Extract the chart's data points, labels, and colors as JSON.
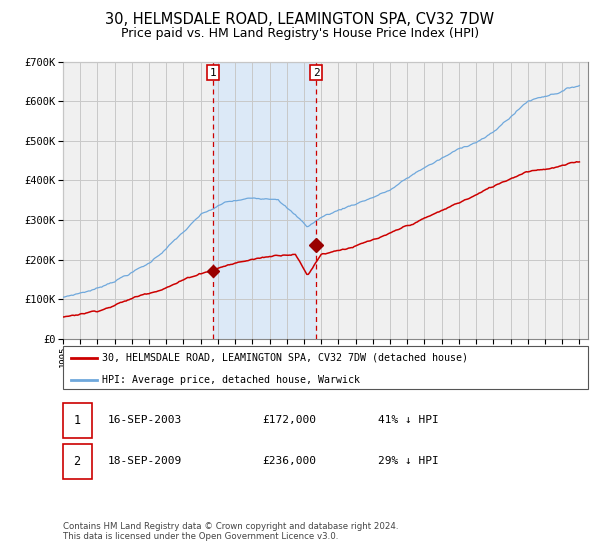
{
  "title": "30, HELMSDALE ROAD, LEAMINGTON SPA, CV32 7DW",
  "subtitle": "Price paid vs. HM Land Registry's House Price Index (HPI)",
  "legend_entry1": "30, HELMSDALE ROAD, LEAMINGTON SPA, CV32 7DW (detached house)",
  "legend_entry2": "HPI: Average price, detached house, Warwick",
  "sale1_date": "16-SEP-2003",
  "sale1_price": 172000,
  "sale1_pct": "41% ↓ HPI",
  "sale2_date": "18-SEP-2009",
  "sale2_price": 236000,
  "sale2_pct": "29% ↓ HPI",
  "footer": "Contains HM Land Registry data © Crown copyright and database right 2024.\nThis data is licensed under the Open Government Licence v3.0.",
  "hpi_color": "#6fa8dc",
  "price_color": "#cc0000",
  "sale_marker_color": "#990000",
  "shade_color": "#dce9f7",
  "grid_color": "#c8c8c8",
  "bg_color": "#f0f0f0",
  "ylim": [
    0,
    700000
  ],
  "yticks": [
    0,
    100000,
    200000,
    300000,
    400000,
    500000,
    600000,
    700000
  ],
  "sale1_x": 2003.71,
  "sale2_x": 2009.71,
  "title_fontsize": 10.5,
  "subtitle_fontsize": 9
}
